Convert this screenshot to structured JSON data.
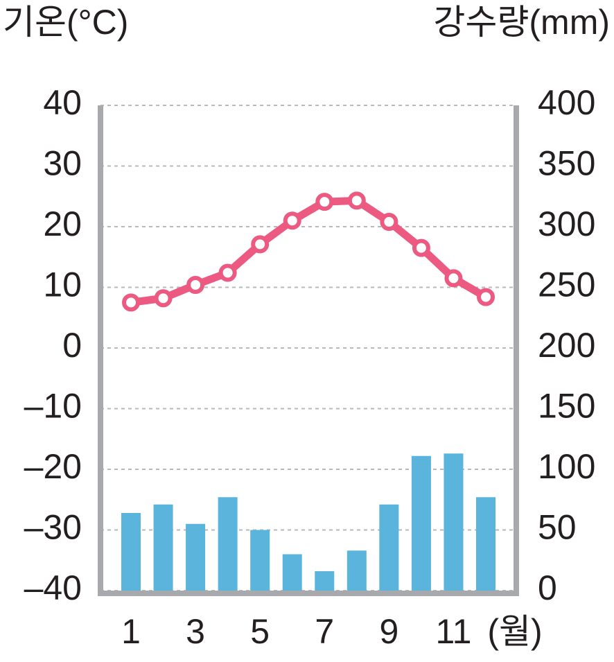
{
  "chart_data": {
    "type": "combo",
    "title": "기온(°C)",
    "y2_title": "강수량(mm)",
    "xlabel": "(월)",
    "categories": [
      "1",
      null,
      "3",
      null,
      "5",
      null,
      "7",
      null,
      "9",
      null,
      "11",
      null
    ],
    "series": [
      {
        "type": "bar",
        "axis": "y2",
        "color": "#5ab4dc",
        "values": [
          64,
          71,
          55,
          77,
          50,
          30,
          16,
          33,
          71,
          111,
          113,
          77
        ]
      },
      {
        "type": "line",
        "axis": "y",
        "color": "#ec5a82",
        "values": [
          7.5,
          8.2,
          10.4,
          12.4,
          17.1,
          21.0,
          24.1,
          24.3,
          20.8,
          16.5,
          11.5,
          8.4
        ]
      }
    ],
    "ylim": [
      -40,
      40
    ],
    "yticks": [
      {
        "value": -40,
        "label": "–40"
      },
      {
        "value": -30,
        "label": "–30"
      },
      {
        "value": -20,
        "label": "–20"
      },
      {
        "value": -10,
        "label": "–10"
      },
      0,
      10,
      20,
      30,
      40
    ],
    "y2lim": [
      0,
      400
    ],
    "y2ticks": [
      0,
      50,
      100,
      150,
      200,
      250,
      300,
      350,
      400
    ],
    "grid": true
  }
}
